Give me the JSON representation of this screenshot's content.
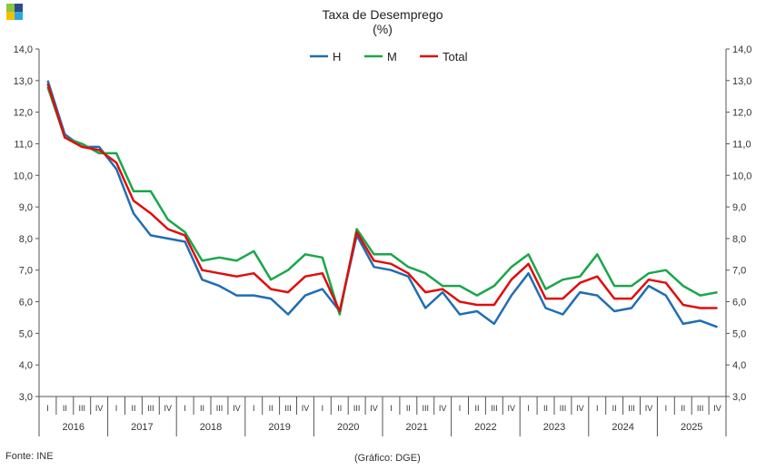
{
  "colors": {
    "H": "#1f6eb4",
    "M": "#1aa64a",
    "Total": "#e00d0d",
    "axis": "#555555",
    "logo_tl": "#8dc63f",
    "logo_tr": "#2e4a8b",
    "logo_bl": "#f2c000",
    "logo_br": "#29a8e0"
  },
  "logo_icon": "dge-logo-icon",
  "footer": {
    "source": "Fonte: INE",
    "credit": "(Gráfico: DGE)"
  },
  "chart_data": {
    "type": "line",
    "title": "Taxa de Desemprego",
    "subtitle": "(%)",
    "ylim": [
      3,
      14
    ],
    "y_ticks": [
      "3,0",
      "4,0",
      "5,0",
      "6,0",
      "7,0",
      "8,0",
      "9,0",
      "10,0",
      "11,0",
      "12,0",
      "13,0",
      "14,0"
    ],
    "legend_position": "top-center",
    "grid": false,
    "quarter_labels": [
      "I",
      "II",
      "III",
      "IV"
    ],
    "years": [
      "2016",
      "2017",
      "2018",
      "2019",
      "2020",
      "2021",
      "2022",
      "2023",
      "2024",
      "2025"
    ],
    "series": [
      {
        "name": "H",
        "values": [
          13.0,
          11.3,
          10.9,
          10.9,
          10.2,
          8.8,
          8.1,
          8.0,
          7.9,
          6.7,
          6.5,
          6.2,
          6.2,
          6.1,
          5.6,
          6.2,
          6.4,
          5.7,
          8.1,
          7.1,
          7.0,
          6.8,
          5.8,
          6.3,
          5.6,
          5.7,
          5.3,
          6.2,
          6.9,
          5.8,
          5.6,
          6.3,
          6.2,
          5.7,
          5.8,
          6.5,
          6.2,
          5.3,
          5.4,
          5.2
        ]
      },
      {
        "name": "M",
        "values": [
          12.8,
          11.2,
          11.0,
          10.7,
          10.7,
          9.5,
          9.5,
          8.6,
          8.2,
          7.3,
          7.4,
          7.3,
          7.6,
          6.7,
          7.0,
          7.5,
          7.4,
          5.6,
          8.3,
          7.5,
          7.5,
          7.1,
          6.9,
          6.5,
          6.5,
          6.2,
          6.5,
          7.1,
          7.5,
          6.4,
          6.7,
          6.8,
          7.5,
          6.5,
          6.5,
          6.9,
          7.0,
          6.5,
          6.2,
          6.3
        ]
      },
      {
        "name": "Total",
        "values": [
          12.9,
          11.2,
          10.9,
          10.8,
          10.4,
          9.2,
          8.8,
          8.3,
          8.1,
          7.0,
          6.9,
          6.8,
          6.9,
          6.4,
          6.3,
          6.8,
          6.9,
          5.7,
          8.2,
          7.3,
          7.2,
          6.9,
          6.3,
          6.4,
          6.0,
          5.9,
          5.9,
          6.7,
          7.2,
          6.1,
          6.1,
          6.6,
          6.8,
          6.1,
          6.1,
          6.7,
          6.6,
          5.9,
          5.8,
          5.8
        ]
      }
    ]
  }
}
